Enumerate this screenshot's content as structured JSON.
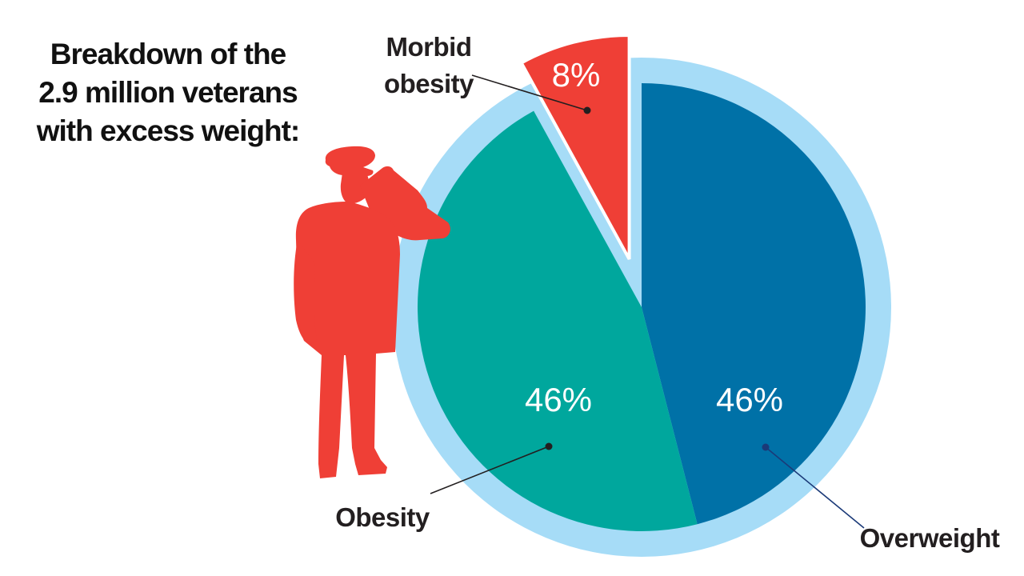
{
  "chart_data": {
    "type": "pie",
    "title": "Breakdown of the 2.9 million veterans with excess weight:",
    "title_lines": [
      "Breakdown of the",
      "2.9 million veterans",
      "with excess weight:"
    ],
    "slices": [
      {
        "name": "Overweight",
        "value": 46,
        "label": "46%",
        "color": "#0071a7"
      },
      {
        "name": "Obesity",
        "value": 46,
        "label": "46%",
        "color": "#00a79d"
      },
      {
        "name": "Morbid obesity",
        "name_lines": [
          "Morbid",
          "obesity"
        ],
        "value": 8,
        "label": "8%",
        "color": "#ef3f36",
        "exploded": true
      }
    ],
    "ring_color": "#a6dcf7",
    "icon": "saluting-soldier-icon",
    "icon_color": "#ef3f36"
  }
}
